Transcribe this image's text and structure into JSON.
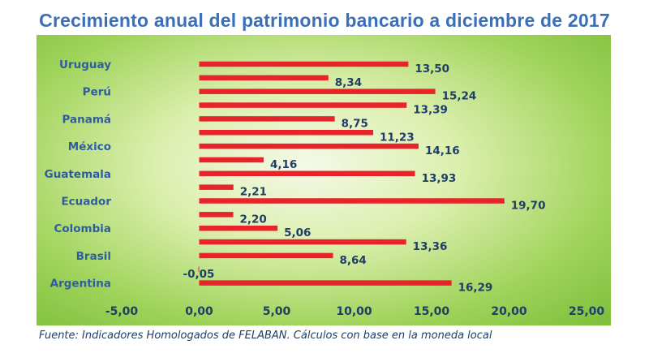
{
  "title": "Crecimiento anual del patrimonio bancario a diciembre de 2017",
  "source": "Fuente: Indicadores Homologados de FELABAN. Cálculos con base en la moneda local",
  "colors": {
    "bar": "#e8242b",
    "title": "#3b6fb6",
    "text": "#1f3e66"
  },
  "chart_data": {
    "type": "bar",
    "orientation": "horizontal",
    "title": "Crecimiento anual del patrimonio bancario a diciembre de 2017",
    "category_labels": [
      "Uruguay",
      "Perú",
      "Panamá",
      "México",
      "Guatemala",
      "Ecuador",
      "Colombia",
      "Brasil",
      "Argentina"
    ],
    "values": [
      13.5,
      8.34,
      15.24,
      13.39,
      8.75,
      11.23,
      14.16,
      4.16,
      13.93,
      2.21,
      19.7,
      2.2,
      5.06,
      13.36,
      8.64,
      -0.05,
      16.29
    ],
    "value_labels": [
      "13,50",
      "8,34",
      "15,24",
      "13,39",
      "8,75",
      "11,23",
      "14,16",
      "4,16",
      "13,93",
      "2,21",
      "19,70",
      "2,20",
      "5,06",
      "13,36",
      "8,64",
      "-0,05",
      "16,29"
    ],
    "xlim": [
      -5,
      25
    ],
    "xticks": [
      -5,
      0,
      5,
      10,
      15,
      20,
      25
    ],
    "xtick_labels": [
      "-5,00",
      "0,00",
      "5,00",
      "10,00",
      "15,00",
      "20,00",
      "25,00"
    ],
    "grid": false,
    "legend": "none"
  }
}
